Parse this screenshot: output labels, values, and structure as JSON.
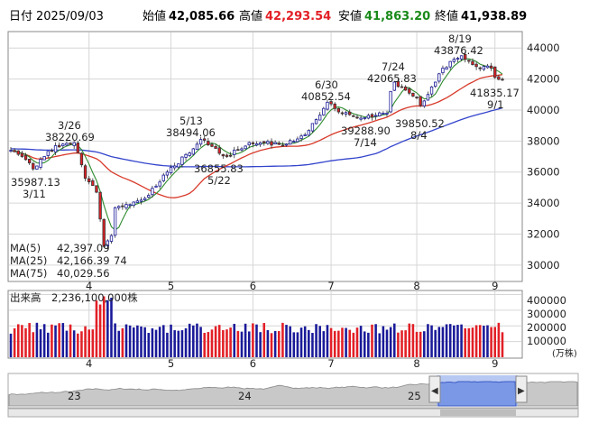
{
  "header": {
    "date_label": "日付",
    "date": "2025/09/03",
    "open_label": "始値",
    "open": "42,085.66",
    "high_label": "高値",
    "high": "42,293.54",
    "low_label": "安値",
    "low": "41,863.20",
    "close_label": "終値",
    "close": "41,938.89"
  },
  "colors": {
    "up": "#1a1a99",
    "down": "#e21f26",
    "ma5": "#2e8b2e",
    "ma25": "#d83a2a",
    "ma75": "#3344cc",
    "high_text": "#e21f26",
    "low_text": "#1a8a1a",
    "volume_up": "#1a1a99",
    "volume_down": "#e21f26"
  },
  "legend": {
    "ma5_label": "MA(5)",
    "ma5_value": "42,397.09",
    "ma25_label": "MA(25)",
    "ma25_value": "42,166.39",
    "ma75_label": "MA(75)",
    "ma75_value": "40,029.56",
    "min_fragment": "74"
  },
  "volume_panel": {
    "title": "出来高",
    "value": "2,236,100,000株",
    "unit": "(万株)",
    "ticks": [
      "400000",
      "300000",
      "200000",
      "100000"
    ]
  },
  "annotations": [
    {
      "value": "35987.13",
      "date": "3/11"
    },
    {
      "value": "38220.69",
      "date": "3/26"
    },
    {
      "value": "38494.06",
      "date": "5/13"
    },
    {
      "value": "36855.83",
      "date": "5/22"
    },
    {
      "value": "40852.54",
      "date": "6/30"
    },
    {
      "value": "39288.90",
      "date": "7/14"
    },
    {
      "value": "42065.83",
      "date": "7/24"
    },
    {
      "value": "39850.52",
      "date": "8/4"
    },
    {
      "value": "43876.42",
      "date": "8/19"
    },
    {
      "value": "41835.17",
      "date": "9/1"
    }
  ],
  "navigator": {
    "labels": [
      "23",
      "24",
      "25"
    ],
    "left_handle": "◀",
    "right_handle": "▶"
  },
  "chart_data": {
    "type": "candlestick",
    "x_tick_labels": [
      "4",
      "5",
      "6",
      "7",
      "8",
      "9"
    ],
    "y_tick_labels": [
      "44000",
      "42000",
      "40000",
      "38000",
      "36000",
      "34000",
      "32000",
      "30000"
    ],
    "ylim": [
      29000,
      45000
    ],
    "grid": true,
    "legend_position": "bottom-left",
    "series": [
      {
        "name": "MA(5)",
        "last": 42397.09
      },
      {
        "name": "MA(25)",
        "last": 42166.39
      },
      {
        "name": "MA(75)",
        "last": 40029.56
      }
    ],
    "close_anchors": [
      {
        "date": "2025-03-03",
        "close": 37400
      },
      {
        "date": "2025-03-07",
        "close": 36800
      },
      {
        "date": "2025-03-11",
        "close": 36200
      },
      {
        "date": "2025-03-14",
        "close": 37000
      },
      {
        "date": "2025-03-19",
        "close": 37700
      },
      {
        "date": "2025-03-26",
        "close": 37900
      },
      {
        "date": "2025-03-31",
        "close": 35600
      },
      {
        "date": "2025-04-03",
        "close": 34700
      },
      {
        "date": "2025-04-07",
        "close": 31200
      },
      {
        "date": "2025-04-09",
        "close": 31900
      },
      {
        "date": "2025-04-10",
        "close": 33700
      },
      {
        "date": "2025-04-16",
        "close": 33900
      },
      {
        "date": "2025-04-22",
        "close": 34300
      },
      {
        "date": "2025-04-30",
        "close": 36000
      },
      {
        "date": "2025-05-09",
        "close": 37500
      },
      {
        "date": "2025-05-13",
        "close": 38100
      },
      {
        "date": "2025-05-22",
        "close": 37000
      },
      {
        "date": "2025-05-30",
        "close": 37900
      },
      {
        "date": "2025-06-13",
        "close": 37800
      },
      {
        "date": "2025-06-20",
        "close": 38400
      },
      {
        "date": "2025-06-27",
        "close": 40100
      },
      {
        "date": "2025-06-30",
        "close": 40500
      },
      {
        "date": "2025-07-04",
        "close": 39800
      },
      {
        "date": "2025-07-14",
        "close": 39500
      },
      {
        "date": "2025-07-22",
        "close": 39800
      },
      {
        "date": "2025-07-23",
        "close": 41200
      },
      {
        "date": "2025-07-24",
        "close": 41800
      },
      {
        "date": "2025-08-01",
        "close": 40800
      },
      {
        "date": "2025-08-04",
        "close": 40300
      },
      {
        "date": "2025-08-08",
        "close": 41800
      },
      {
        "date": "2025-08-12",
        "close": 42700
      },
      {
        "date": "2025-08-19",
        "close": 43500
      },
      {
        "date": "2025-08-25",
        "close": 42800
      },
      {
        "date": "2025-08-29",
        "close": 42700
      },
      {
        "date": "2025-09-01",
        "close": 42100
      },
      {
        "date": "2025-09-03",
        "close": 41938.89
      }
    ]
  }
}
